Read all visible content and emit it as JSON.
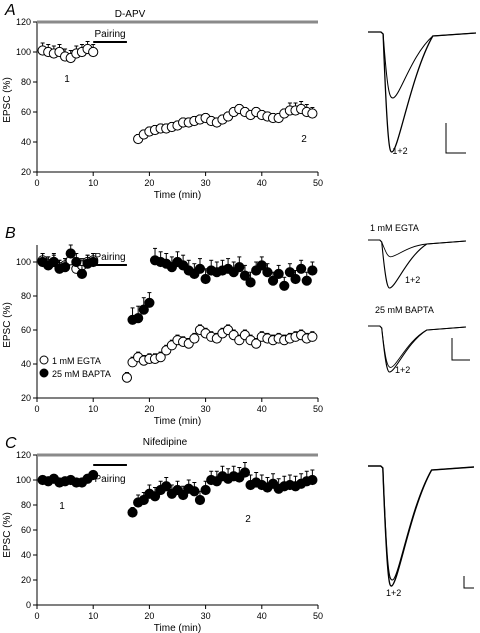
{
  "chart_data": [
    {
      "panel": "A",
      "type": "scatter",
      "condition": "D-APV",
      "bar_label": "Pairing",
      "ylabel": "EPSC (%)",
      "xlabel": "Time (min)",
      "xlim": [
        0,
        50
      ],
      "ylim": [
        20,
        120
      ],
      "xticks": [
        "0",
        "10",
        "20",
        "30",
        "40",
        "50"
      ],
      "yticks": [
        "20",
        "40",
        "60",
        "80",
        "100",
        "120"
      ],
      "annotations": [
        "1",
        "2"
      ],
      "trace_label": "1+2",
      "series": [
        {
          "style": "open",
          "x": [
            1,
            2,
            3,
            4,
            5,
            6,
            7,
            8,
            9,
            10,
            18,
            19,
            20,
            21,
            22,
            23,
            24,
            25,
            26,
            27,
            28,
            29,
            30,
            31,
            32,
            33,
            34,
            35,
            36,
            37,
            38,
            39,
            40,
            41,
            42,
            43,
            44,
            45,
            46,
            47,
            48,
            49
          ],
          "y": [
            101,
            100,
            99,
            100,
            97,
            96,
            99,
            100,
            102,
            100,
            42,
            45,
            47,
            48,
            49,
            49,
            50,
            51,
            53,
            53,
            54,
            55,
            56,
            54,
            53,
            55,
            57,
            60,
            62,
            60,
            58,
            60,
            58,
            57,
            56,
            56,
            59,
            61,
            61,
            62,
            60,
            59
          ],
          "err": [
            5,
            5,
            5,
            5,
            5,
            5,
            5,
            5,
            5,
            5,
            3,
            3,
            3,
            3,
            3,
            3,
            3,
            3,
            3,
            3,
            3,
            3,
            3,
            3,
            3,
            3,
            3,
            3,
            3,
            3,
            3,
            3,
            3,
            3,
            3,
            3,
            3,
            5,
            5,
            5,
            5,
            4
          ]
        }
      ]
    },
    {
      "panel": "B",
      "type": "scatter",
      "bar_label": "Pairing",
      "ylabel": "EPSC (%)",
      "xlabel": "Time (min)",
      "xlim": [
        0,
        50
      ],
      "ylim": [
        20,
        110
      ],
      "xticks": [
        "0",
        "10",
        "20",
        "30",
        "40",
        "50"
      ],
      "yticks": [
        "20",
        "40",
        "60",
        "80",
        "100"
      ],
      "legend": [
        "1 mM EGTA",
        "25 mM BAPTA"
      ],
      "trace_labels": [
        "1 mM EGTA",
        "1+2",
        "25 mM BAPTA",
        "1+2"
      ],
      "series": [
        {
          "name": "1 mM EGTA",
          "style": "open",
          "x": [
            1,
            2,
            3,
            4,
            5,
            6,
            7,
            8,
            9,
            10,
            16,
            17,
            18,
            19,
            20,
            21,
            22,
            23,
            24,
            25,
            26,
            27,
            28,
            29,
            30,
            31,
            32,
            33,
            34,
            35,
            36,
            37,
            38,
            39,
            40,
            41,
            42,
            43,
            44,
            45,
            46,
            47,
            48,
            49
          ],
          "y": [
            101,
            99,
            100,
            97,
            98,
            101,
            96,
            98,
            100,
            101,
            32,
            41,
            44,
            42,
            43,
            43,
            44,
            48,
            51,
            54,
            53,
            52,
            55,
            60,
            58,
            56,
            55,
            58,
            60,
            57,
            54,
            57,
            54,
            52,
            56,
            55,
            54,
            55,
            54,
            55,
            56,
            57,
            55,
            56
          ],
          "err": [
            4,
            4,
            4,
            4,
            4,
            4,
            4,
            4,
            4,
            4,
            3,
            3,
            3,
            3,
            3,
            3,
            3,
            3,
            3,
            3,
            3,
            3,
            3,
            3,
            3,
            3,
            3,
            3,
            3,
            3,
            3,
            3,
            3,
            3,
            3,
            3,
            3,
            3,
            3,
            3,
            3,
            3,
            3,
            3
          ]
        },
        {
          "name": "25 mM BAPTA",
          "style": "filled",
          "x": [
            1,
            2,
            3,
            4,
            5,
            6,
            7,
            8,
            9,
            10,
            17,
            18,
            19,
            20,
            21,
            22,
            23,
            24,
            25,
            26,
            27,
            28,
            29,
            30,
            31,
            32,
            33,
            34,
            35,
            36,
            37,
            38,
            39,
            40,
            41,
            42,
            43,
            44,
            45,
            46,
            47,
            48,
            49
          ],
          "y": [
            100,
            98,
            100,
            96,
            97,
            105,
            100,
            93,
            99,
            100,
            66,
            67,
            72,
            76,
            101,
            100,
            99,
            97,
            100,
            98,
            95,
            93,
            96,
            90,
            95,
            94,
            95,
            96,
            94,
            97,
            92,
            88,
            95,
            98,
            94,
            89,
            93,
            86,
            94,
            90,
            96,
            89,
            95
          ],
          "err": [
            5,
            5,
            5,
            5,
            5,
            5,
            5,
            5,
            5,
            5,
            7,
            7,
            7,
            6,
            7,
            6,
            6,
            6,
            6,
            6,
            6,
            6,
            6,
            6,
            6,
            6,
            6,
            6,
            6,
            6,
            6,
            6,
            5,
            5,
            5,
            5,
            5,
            5,
            5,
            5,
            5,
            5,
            5
          ]
        }
      ]
    },
    {
      "panel": "C",
      "type": "scatter",
      "condition": "Nifedipine",
      "bar_label": "Pairing",
      "ylabel": "EPSC (%)",
      "xlabel": "Time (min)",
      "xlim": [
        0,
        50
      ],
      "ylim": [
        0,
        120
      ],
      "xticks": [
        "0",
        "10",
        "20",
        "30",
        "40",
        "50"
      ],
      "yticks": [
        "0",
        "20",
        "40",
        "60",
        "80",
        "100",
        "120"
      ],
      "annotations": [
        "1",
        "2"
      ],
      "trace_label": "1+2",
      "series": [
        {
          "style": "filled",
          "x": [
            1,
            2,
            3,
            4,
            5,
            6,
            7,
            8,
            9,
            10,
            17,
            18,
            19,
            20,
            21,
            22,
            23,
            24,
            25,
            26,
            27,
            28,
            29,
            30,
            31,
            32,
            33,
            34,
            35,
            36,
            37,
            38,
            39,
            40,
            41,
            42,
            43,
            44,
            45,
            46,
            47,
            48,
            49
          ],
          "y": [
            100,
            99,
            101,
            98,
            99,
            100,
            98,
            98,
            101,
            104,
            74,
            82,
            84,
            89,
            87,
            92,
            95,
            89,
            92,
            88,
            93,
            91,
            84,
            92,
            100,
            99,
            103,
            101,
            103,
            102,
            106,
            96,
            98,
            96,
            94,
            97,
            93,
            95,
            96,
            95,
            97,
            99,
            100
          ],
          "err": [
            2,
            2,
            2,
            2,
            2,
            2,
            2,
            2,
            2,
            2,
            4,
            6,
            6,
            7,
            7,
            7,
            7,
            7,
            7,
            7,
            7,
            7,
            7,
            7,
            7,
            8,
            8,
            8,
            8,
            8,
            8,
            8,
            8,
            8,
            8,
            8,
            8,
            8,
            8,
            8,
            8,
            8,
            8
          ]
        }
      ]
    }
  ],
  "panel_labels": [
    "A",
    "B",
    "C"
  ]
}
